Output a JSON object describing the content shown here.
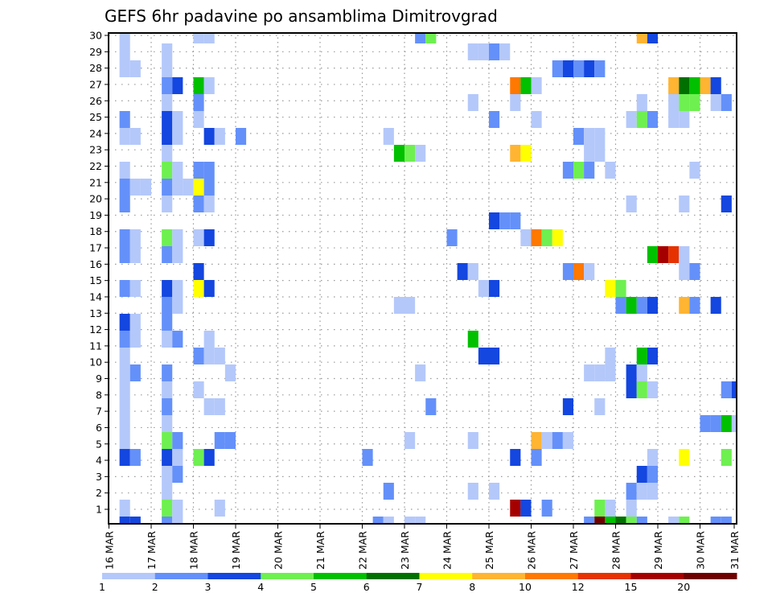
{
  "chart_data": {
    "type": "heatmap",
    "title": "GEFS 6hr padavine po ansamblima Dimitrovgrad",
    "xlabel": "",
    "ylabel": "",
    "x_ticks": [
      "16 MAR",
      "17 MAR",
      "18 MAR",
      "19 MAR",
      "20 MAR",
      "21 MAR",
      "22 MAR",
      "23 MAR",
      "24 MAR",
      "25 MAR",
      "26 MAR",
      "27 MAR",
      "28 MAR",
      "29 MAR",
      "30 MAR",
      "31 MAR"
    ],
    "y_ticks": [
      "1",
      "2",
      "3",
      "4",
      "5",
      "6",
      "7",
      "8",
      "9",
      "10",
      "11",
      "12",
      "13",
      "14",
      "15",
      "16",
      "17",
      "18",
      "19",
      "20",
      "21",
      "22",
      "23",
      "24",
      "25",
      "26",
      "27",
      "28",
      "29",
      "30"
    ],
    "x_unit": "6-hour step index from 16 MAR 00Z",
    "y_unit": "ensemble member",
    "grid": true,
    "legend_placement": "bottom",
    "levels": [
      1,
      2,
      3,
      4,
      5,
      6,
      7,
      8,
      10,
      12,
      15,
      20
    ],
    "level_labels": [
      "1",
      "2",
      "3",
      "4",
      "5",
      "6",
      "7",
      "8",
      "10",
      "12",
      "15",
      "20"
    ],
    "colors": [
      "#b4c8fa",
      "#6490fa",
      "#1446e0",
      "#6ef050",
      "#00c000",
      "#007000",
      "#ffff00",
      "#ffb432",
      "#ff7800",
      "#e63200",
      "#a50000",
      "#6e0000"
    ],
    "cells_format": "[step, member, level]",
    "cells": [
      [
        1,
        30,
        1
      ],
      [
        8,
        30,
        1
      ],
      [
        9,
        30,
        1
      ],
      [
        29,
        30,
        2
      ],
      [
        30,
        30,
        4
      ],
      [
        50,
        30,
        8
      ],
      [
        51,
        30,
        3
      ],
      [
        1,
        29,
        1
      ],
      [
        5,
        29,
        1
      ],
      [
        34,
        29,
        1
      ],
      [
        35,
        29,
        1
      ],
      [
        36,
        29,
        2
      ],
      [
        37,
        29,
        1
      ],
      [
        1,
        28,
        1
      ],
      [
        2,
        28,
        1
      ],
      [
        5,
        28,
        1
      ],
      [
        42,
        28,
        2
      ],
      [
        43,
        28,
        3
      ],
      [
        44,
        28,
        2
      ],
      [
        45,
        28,
        3
      ],
      [
        46,
        28,
        2
      ],
      [
        5,
        27,
        2
      ],
      [
        6,
        27,
        3
      ],
      [
        8,
        27,
        5
      ],
      [
        9,
        27,
        1
      ],
      [
        38,
        27,
        10
      ],
      [
        39,
        27,
        5
      ],
      [
        40,
        27,
        1
      ],
      [
        53,
        27,
        8
      ],
      [
        54,
        27,
        6
      ],
      [
        55,
        27,
        5
      ],
      [
        56,
        27,
        8
      ],
      [
        57,
        27,
        3
      ],
      [
        5,
        26,
        1
      ],
      [
        8,
        26,
        2
      ],
      [
        34,
        26,
        1
      ],
      [
        38,
        26,
        1
      ],
      [
        50,
        26,
        1
      ],
      [
        53,
        26,
        1
      ],
      [
        54,
        26,
        4
      ],
      [
        55,
        26,
        4
      ],
      [
        57,
        26,
        1
      ],
      [
        58,
        26,
        2
      ],
      [
        1,
        25,
        2
      ],
      [
        5,
        25,
        3
      ],
      [
        6,
        25,
        1
      ],
      [
        8,
        25,
        1
      ],
      [
        36,
        25,
        2
      ],
      [
        40,
        25,
        1
      ],
      [
        49,
        25,
        1
      ],
      [
        50,
        25,
        4
      ],
      [
        51,
        25,
        2
      ],
      [
        53,
        25,
        1
      ],
      [
        54,
        25,
        1
      ],
      [
        1,
        24,
        1
      ],
      [
        2,
        24,
        1
      ],
      [
        5,
        24,
        3
      ],
      [
        6,
        24,
        1
      ],
      [
        9,
        24,
        3
      ],
      [
        10,
        24,
        1
      ],
      [
        12,
        24,
        2
      ],
      [
        26,
        24,
        1
      ],
      [
        44,
        24,
        2
      ],
      [
        45,
        24,
        1
      ],
      [
        46,
        24,
        1
      ],
      [
        5,
        23,
        1
      ],
      [
        27,
        23,
        5
      ],
      [
        28,
        23,
        4
      ],
      [
        29,
        23,
        1
      ],
      [
        38,
        23,
        8
      ],
      [
        39,
        23,
        7
      ],
      [
        45,
        23,
        1
      ],
      [
        46,
        23,
        1
      ],
      [
        1,
        22,
        1
      ],
      [
        5,
        22,
        4
      ],
      [
        6,
        22,
        1
      ],
      [
        8,
        22,
        2
      ],
      [
        9,
        22,
        2
      ],
      [
        43,
        22,
        2
      ],
      [
        44,
        22,
        4
      ],
      [
        45,
        22,
        2
      ],
      [
        47,
        22,
        1
      ],
      [
        55,
        22,
        1
      ],
      [
        1,
        21,
        2
      ],
      [
        2,
        21,
        1
      ],
      [
        3,
        21,
        1
      ],
      [
        5,
        21,
        2
      ],
      [
        6,
        21,
        1
      ],
      [
        7,
        21,
        1
      ],
      [
        8,
        21,
        7
      ],
      [
        9,
        21,
        2
      ],
      [
        1,
        20,
        2
      ],
      [
        5,
        20,
        1
      ],
      [
        8,
        20,
        2
      ],
      [
        9,
        20,
        1
      ],
      [
        49,
        20,
        1
      ],
      [
        54,
        20,
        1
      ],
      [
        58,
        20,
        3
      ],
      [
        36,
        19,
        3
      ],
      [
        37,
        19,
        2
      ],
      [
        38,
        19,
        2
      ],
      [
        1,
        18,
        2
      ],
      [
        2,
        18,
        1
      ],
      [
        5,
        18,
        4
      ],
      [
        6,
        18,
        1
      ],
      [
        8,
        18,
        1
      ],
      [
        9,
        18,
        3
      ],
      [
        32,
        18,
        2
      ],
      [
        39,
        18,
        1
      ],
      [
        40,
        18,
        10
      ],
      [
        41,
        18,
        4
      ],
      [
        42,
        18,
        7
      ],
      [
        1,
        17,
        2
      ],
      [
        2,
        17,
        1
      ],
      [
        5,
        17,
        2
      ],
      [
        6,
        17,
        1
      ],
      [
        51,
        17,
        5
      ],
      [
        52,
        17,
        15
      ],
      [
        53,
        17,
        12
      ],
      [
        54,
        17,
        1
      ],
      [
        8,
        16,
        3
      ],
      [
        33,
        16,
        3
      ],
      [
        34,
        16,
        1
      ],
      [
        43,
        16,
        2
      ],
      [
        44,
        16,
        10
      ],
      [
        45,
        16,
        1
      ],
      [
        54,
        16,
        1
      ],
      [
        55,
        16,
        2
      ],
      [
        1,
        15,
        2
      ],
      [
        2,
        15,
        1
      ],
      [
        5,
        15,
        3
      ],
      [
        6,
        15,
        1
      ],
      [
        8,
        15,
        7
      ],
      [
        9,
        15,
        3
      ],
      [
        35,
        15,
        1
      ],
      [
        36,
        15,
        3
      ],
      [
        47,
        15,
        7
      ],
      [
        48,
        15,
        4
      ],
      [
        5,
        14,
        2
      ],
      [
        6,
        14,
        1
      ],
      [
        27,
        14,
        1
      ],
      [
        28,
        14,
        1
      ],
      [
        48,
        14,
        2
      ],
      [
        49,
        14,
        5
      ],
      [
        50,
        14,
        2
      ],
      [
        51,
        14,
        3
      ],
      [
        54,
        14,
        8
      ],
      [
        55,
        14,
        2
      ],
      [
        57,
        14,
        3
      ],
      [
        1,
        13,
        3
      ],
      [
        2,
        13,
        1
      ],
      [
        5,
        13,
        2
      ],
      [
        1,
        12,
        2
      ],
      [
        2,
        12,
        1
      ],
      [
        5,
        12,
        1
      ],
      [
        6,
        12,
        2
      ],
      [
        9,
        12,
        1
      ],
      [
        34,
        12,
        5
      ],
      [
        1,
        11,
        1
      ],
      [
        8,
        11,
        2
      ],
      [
        9,
        11,
        1
      ],
      [
        10,
        11,
        1
      ],
      [
        35,
        11,
        3
      ],
      [
        36,
        11,
        3
      ],
      [
        47,
        11,
        1
      ],
      [
        50,
        11,
        5
      ],
      [
        51,
        11,
        3
      ],
      [
        1,
        10,
        1
      ],
      [
        2,
        10,
        2
      ],
      [
        5,
        10,
        2
      ],
      [
        11,
        10,
        1
      ],
      [
        29,
        10,
        1
      ],
      [
        45,
        10,
        1
      ],
      [
        46,
        10,
        1
      ],
      [
        47,
        10,
        1
      ],
      [
        49,
        10,
        3
      ],
      [
        50,
        10,
        1
      ],
      [
        1,
        9,
        1
      ],
      [
        5,
        9,
        1
      ],
      [
        8,
        9,
        1
      ],
      [
        49,
        9,
        3
      ],
      [
        50,
        9,
        4
      ],
      [
        51,
        9,
        1
      ],
      [
        58,
        9,
        2
      ],
      [
        59,
        9,
        3
      ],
      [
        1,
        8,
        1
      ],
      [
        5,
        8,
        2
      ],
      [
        9,
        8,
        1
      ],
      [
        10,
        8,
        1
      ],
      [
        30,
        8,
        2
      ],
      [
        43,
        8,
        3
      ],
      [
        46,
        8,
        1
      ],
      [
        1,
        7,
        1
      ],
      [
        5,
        7,
        1
      ],
      [
        56,
        7,
        2
      ],
      [
        57,
        7,
        2
      ],
      [
        58,
        7,
        5
      ],
      [
        59,
        7,
        1
      ],
      [
        1,
        6,
        1
      ],
      [
        5,
        6,
        4
      ],
      [
        6,
        6,
        2
      ],
      [
        10,
        6,
        2
      ],
      [
        11,
        6,
        2
      ],
      [
        28,
        6,
        1
      ],
      [
        34,
        6,
        1
      ],
      [
        40,
        6,
        8
      ],
      [
        41,
        6,
        1
      ],
      [
        42,
        6,
        2
      ],
      [
        43,
        6,
        1
      ],
      [
        1,
        5,
        3
      ],
      [
        2,
        5,
        2
      ],
      [
        5,
        5,
        3
      ],
      [
        6,
        5,
        1
      ],
      [
        8,
        5,
        4
      ],
      [
        9,
        5,
        3
      ],
      [
        24,
        5,
        2
      ],
      [
        38,
        5,
        3
      ],
      [
        40,
        5,
        2
      ],
      [
        51,
        5,
        1
      ],
      [
        54,
        5,
        7
      ],
      [
        58,
        5,
        4
      ],
      [
        5,
        4,
        1
      ],
      [
        6,
        4,
        2
      ],
      [
        50,
        4,
        3
      ],
      [
        51,
        4,
        2
      ],
      [
        5,
        3,
        1
      ],
      [
        26,
        3,
        2
      ],
      [
        34,
        3,
        1
      ],
      [
        36,
        3,
        1
      ],
      [
        49,
        3,
        2
      ],
      [
        50,
        3,
        1
      ],
      [
        51,
        3,
        1
      ],
      [
        1,
        2,
        1
      ],
      [
        5,
        2,
        4
      ],
      [
        6,
        2,
        1
      ],
      [
        10,
        2,
        1
      ],
      [
        38,
        2,
        15
      ],
      [
        39,
        2,
        3
      ],
      [
        41,
        2,
        2
      ],
      [
        46,
        2,
        4
      ],
      [
        47,
        2,
        1
      ],
      [
        49,
        2,
        1
      ],
      [
        1,
        1,
        3
      ],
      [
        2,
        1,
        3
      ],
      [
        5,
        1,
        2
      ],
      [
        6,
        1,
        1
      ],
      [
        25,
        1,
        2
      ],
      [
        26,
        1,
        1
      ],
      [
        28,
        1,
        1
      ],
      [
        29,
        1,
        1
      ],
      [
        45,
        1,
        2
      ],
      [
        46,
        1,
        20
      ],
      [
        47,
        1,
        5
      ],
      [
        48,
        1,
        6
      ],
      [
        49,
        1,
        4
      ],
      [
        50,
        1,
        2
      ],
      [
        53,
        1,
        1
      ],
      [
        54,
        1,
        4
      ],
      [
        57,
        1,
        2
      ],
      [
        58,
        1,
        2
      ]
    ]
  }
}
